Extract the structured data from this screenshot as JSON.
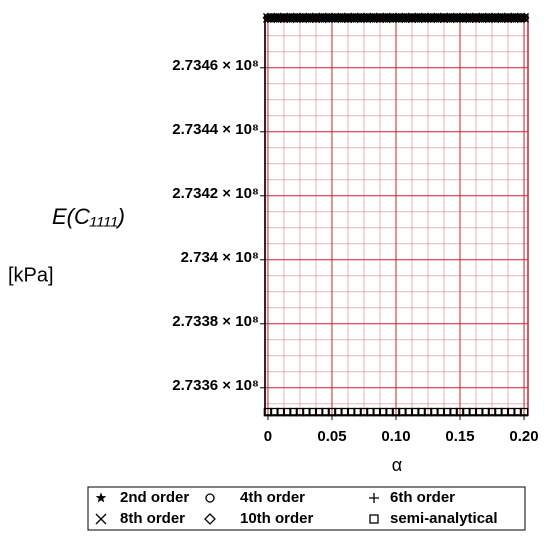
{
  "chart_data": {
    "type": "scatter",
    "ylabel": "E(C₁₁₁₁)",
    "yunit": "[kPa]",
    "xlabel": "α",
    "x": [
      0,
      0.005,
      0.01,
      0.015,
      0.02,
      0.025,
      0.03,
      0.035,
      0.04,
      0.045,
      0.05,
      0.055,
      0.06,
      0.065,
      0.07,
      0.075,
      0.08,
      0.085,
      0.09,
      0.095,
      0.1,
      0.105,
      0.11,
      0.115,
      0.12,
      0.125,
      0.13,
      0.135,
      0.14,
      0.145,
      0.15,
      0.155,
      0.16,
      0.165,
      0.17,
      0.175,
      0.18,
      0.185,
      0.19,
      0.195,
      0.2
    ],
    "series": [
      {
        "name": "2nd order",
        "marker": "star",
        "color": "#000000",
        "values": [
          273475600,
          273475600,
          273475600,
          273475600,
          273475600,
          273475600,
          273475600,
          273475600,
          273475600,
          273475600,
          273475600,
          273475600,
          273475600,
          273475600,
          273475600,
          273475600,
          273475600,
          273475600,
          273475600,
          273475600,
          273475600,
          273475600,
          273475600,
          273475600,
          273475600,
          273475600,
          273475600,
          273475600,
          273475600,
          273475600,
          273475600,
          273475600,
          273475600,
          273475600,
          273475600,
          273475600,
          273475600,
          273475600,
          273475600,
          273475600,
          273475600
        ]
      },
      {
        "name": "4th order",
        "marker": "circle",
        "color": "#000000",
        "values": [
          273475600,
          273475600,
          273475600,
          273475600,
          273475600,
          273475600,
          273475600,
          273475600,
          273475600,
          273475600,
          273475600,
          273475600,
          273475600,
          273475600,
          273475600,
          273475600,
          273475600,
          273475600,
          273475600,
          273475600,
          273475600,
          273475600,
          273475600,
          273475600,
          273475600,
          273475600,
          273475600,
          273475600,
          273475600,
          273475600,
          273475600,
          273475600,
          273475600,
          273475600,
          273475600,
          273475600,
          273475600,
          273475600,
          273475600,
          273475600,
          273475600
        ]
      },
      {
        "name": "6th order",
        "marker": "plus",
        "color": "#000000",
        "values": [
          273475600,
          273475600,
          273475600,
          273475600,
          273475600,
          273475600,
          273475600,
          273475600,
          273475600,
          273475600,
          273475600,
          273475600,
          273475600,
          273475600,
          273475600,
          273475600,
          273475600,
          273475600,
          273475600,
          273475600,
          273475600,
          273475600,
          273475600,
          273475600,
          273475600,
          273475600,
          273475600,
          273475600,
          273475600,
          273475600,
          273475600,
          273475600,
          273475600,
          273475600,
          273475600,
          273475600,
          273475600,
          273475600,
          273475600,
          273475600,
          273475600
        ]
      },
      {
        "name": "8th order",
        "marker": "cross",
        "color": "#000000",
        "values": [
          273475600,
          273475600,
          273475600,
          273475600,
          273475600,
          273475600,
          273475600,
          273475600,
          273475600,
          273475600,
          273475600,
          273475600,
          273475600,
          273475600,
          273475600,
          273475600,
          273475600,
          273475600,
          273475600,
          273475600,
          273475600,
          273475600,
          273475600,
          273475600,
          273475600,
          273475600,
          273475600,
          273475600,
          273475600,
          273475600,
          273475600,
          273475600,
          273475600,
          273475600,
          273475600,
          273475600,
          273475600,
          273475600,
          273475600,
          273475600,
          273475600
        ]
      },
      {
        "name": "10th order",
        "marker": "diamond",
        "color": "#000000",
        "values": [
          273475600,
          273475600,
          273475600,
          273475600,
          273475600,
          273475600,
          273475600,
          273475600,
          273475600,
          273475600,
          273475600,
          273475600,
          273475600,
          273475600,
          273475600,
          273475600,
          273475600,
          273475600,
          273475600,
          273475600,
          273475600,
          273475600,
          273475600,
          273475600,
          273475600,
          273475600,
          273475600,
          273475600,
          273475600,
          273475600,
          273475600,
          273475600,
          273475600,
          273475600,
          273475600,
          273475600,
          273475600,
          273475600,
          273475600,
          273475600,
          273475600
        ]
      },
      {
        "name": "semi-analytical",
        "marker": "square",
        "color": "#000000",
        "values": [
          273352400,
          273352400,
          273352400,
          273352400,
          273352400,
          273352400,
          273352400,
          273352400,
          273352400,
          273352400,
          273352400,
          273352400,
          273352400,
          273352400,
          273352400,
          273352400,
          273352400,
          273352400,
          273352400,
          273352400,
          273352400,
          273352400,
          273352400,
          273352400,
          273352400,
          273352400,
          273352400,
          273352400,
          273352400,
          273352400,
          273352400,
          273352400,
          273352400,
          273352400,
          273352400,
          273352400,
          273352400,
          273352400,
          273352400,
          273352400,
          273352400
        ]
      }
    ],
    "xlim": [
      -0.0023,
      0.2031
    ],
    "xticks": [
      0,
      0.05,
      {
        "value": 0.1,
        "label": "0.10"
      },
      0.15,
      {
        "value": 0.2,
        "label": "0.20"
      }
    ],
    "ylim": [
      273351500,
      273476500
    ],
    "yticks": [
      {
        "value": 273360000,
        "label": "2.7336 × 10⁸"
      },
      {
        "value": 273380000,
        "label": "2.7338 × 10⁸"
      },
      {
        "value": 273400000,
        "label": "2.734 × 10⁸"
      },
      {
        "value": 273420000,
        "label": "2.7342 × 10⁸"
      },
      {
        "value": 273440000,
        "label": "2.7344 × 10⁸"
      },
      {
        "value": 273460000,
        "label": "2.7346 × 10⁸"
      }
    ],
    "grid": true,
    "grid_color": "#d0202a",
    "legend": "bottom"
  }
}
